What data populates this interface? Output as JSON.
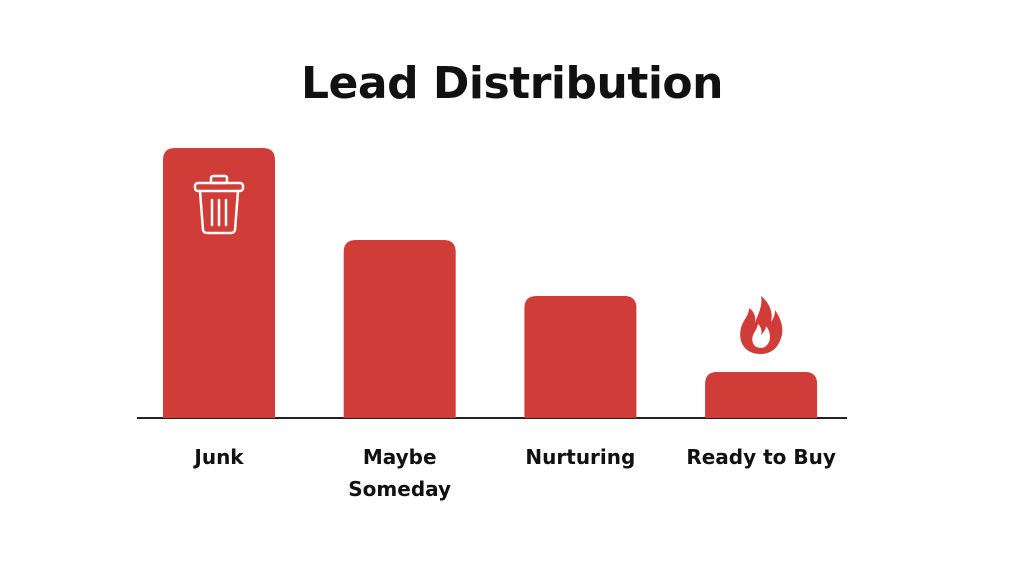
{
  "chart_data": {
    "type": "bar",
    "title": "Lead Distribution",
    "categories": [
      "Junk",
      "Maybe Someday",
      "Nurturing",
      "Ready to Buy"
    ],
    "values": [
      270,
      178,
      122,
      46
    ],
    "color": "#d03c38"
  }
}
